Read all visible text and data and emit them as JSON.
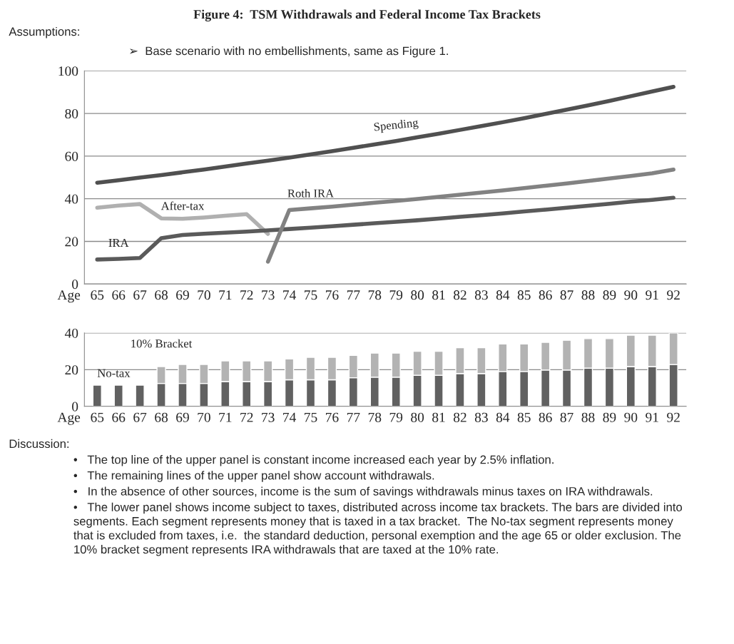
{
  "chart_data": [
    {
      "type": "line",
      "title": "Figure 4:  TSM Withdrawals and Federal Income Tax Brackets",
      "subtitle": "Assumptions:",
      "annotations": [
        "➢  Base scenario with no embellishments, same as Figure 1."
      ],
      "xlabel": "Age",
      "categories": [
        "65",
        "66",
        "67",
        "68",
        "69",
        "70",
        "71",
        "72",
        "73",
        "74",
        "75",
        "76",
        "77",
        "78",
        "79",
        "80",
        "81",
        "82",
        "83",
        "84",
        "85",
        "86",
        "87",
        "88",
        "89",
        "90",
        "91",
        "92"
      ],
      "series": [
        {
          "name": "Spending",
          "color": "#505050",
          "values": [
            47.5,
            48.7,
            49.9,
            51.1,
            52.4,
            53.7,
            55.1,
            56.5,
            57.9,
            59.3,
            60.8,
            62.3,
            63.9,
            65.5,
            67.1,
            68.8,
            70.5,
            72.3,
            74.1,
            75.9,
            77.8,
            79.8,
            81.8,
            83.8,
            85.9,
            88.1,
            90.3,
            92.5
          ]
        },
        {
          "name": "After-tax",
          "color": "#b0b0b0",
          "values": [
            35.8,
            36.8,
            37.5,
            30.8,
            30.6,
            31.2,
            32.0,
            32.8,
            23.5,
            null,
            null,
            null,
            null,
            null,
            null,
            null,
            null,
            null,
            null,
            null,
            null,
            null,
            null,
            null,
            null,
            null,
            null,
            null
          ]
        },
        {
          "name": "IRA",
          "color": "#5a5a5a",
          "values": [
            11.5,
            11.8,
            12.2,
            21.5,
            23.0,
            23.6,
            24.1,
            24.6,
            25.2,
            25.8,
            26.4,
            27.1,
            27.8,
            28.5,
            29.2,
            29.9,
            30.7,
            31.5,
            32.3,
            33.1,
            34.0,
            34.9,
            35.8,
            36.7,
            37.6,
            38.6,
            39.5,
            40.5
          ]
        },
        {
          "name": "Roth IRA",
          "color": "#828282",
          "values": [
            null,
            null,
            null,
            null,
            null,
            null,
            null,
            null,
            10.5,
            34.7,
            35.5,
            36.3,
            37.2,
            38.1,
            39.0,
            39.9,
            40.9,
            41.9,
            42.9,
            43.9,
            45.0,
            46.1,
            47.2,
            48.3,
            49.5,
            50.7,
            51.9,
            53.7
          ]
        }
      ],
      "ylim": [
        0,
        100
      ],
      "yticks": [
        0,
        20,
        40,
        60,
        80,
        100
      ],
      "grid": "y",
      "legend": false,
      "line_style": "solid",
      "marker": "none"
    },
    {
      "type": "bar",
      "stacked": true,
      "xlabel": "Age",
      "categories": [
        "65",
        "66",
        "67",
        "68",
        "69",
        "70",
        "71",
        "72",
        "73",
        "74",
        "75",
        "76",
        "77",
        "78",
        "79",
        "80",
        "81",
        "82",
        "83",
        "84",
        "85",
        "86",
        "87",
        "88",
        "89",
        "90",
        "91",
        "92"
      ],
      "series": [
        {
          "name": "No-tax",
          "color": "#616161",
          "values": [
            11.6,
            11.6,
            11.6,
            12.5,
            12.5,
            12.5,
            13.5,
            13.5,
            13.5,
            14.5,
            14.5,
            14.5,
            15.6,
            15.9,
            15.9,
            16.9,
            16.9,
            17.9,
            17.9,
            19.0,
            19.0,
            19.8,
            19.8,
            20.8,
            20.8,
            21.7,
            21.7,
            22.8
          ]
        },
        {
          "name": "10% Bracket",
          "color": "#b3b3b3",
          "values": [
            null,
            null,
            null,
            9.2,
            10.3,
            10.3,
            11.3,
            11.3,
            11.3,
            11.3,
            12.2,
            12.2,
            12.2,
            13.1,
            13.1,
            13.1,
            13.1,
            14.1,
            14.1,
            15.0,
            15.0,
            15.1,
            16.2,
            16.1,
            16.1,
            17.1,
            17.1,
            17.2
          ]
        }
      ],
      "ylim": [
        0,
        40
      ],
      "yticks": [
        0,
        20,
        40
      ],
      "grid": "y",
      "legend": false,
      "annotations": [
        "Discussion:",
        "•   The top line of the upper panel is constant income increased each year by 2.5% inflation.",
        "•   The remaining lines of the upper panel show account withdrawals.",
        "•   In the absence of other sources, income is the sum of savings withdrawals minus taxes on IRA withdrawals.",
        "•   The lower panel shows income subject to taxes, distributed across income tax brackets. The bars are divided into segments. Each segment represents money that is taxed in a tax bracket.  The No-tax segment represents money that is excluded from taxes, i.e.  the standard deduction, personal exemption and the age 65 or older exclusion. The 10% bracket segment represents IRA withdrawals that are taxed at the 10% rate."
      ]
    }
  ]
}
